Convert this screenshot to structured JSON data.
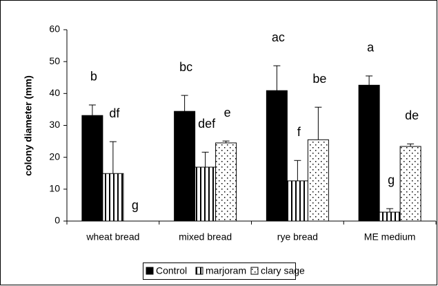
{
  "chart_data": {
    "type": "bar",
    "y_label": "colony diameter (mm)",
    "categories": [
      "wheat bread",
      "mixed bread",
      "rye bread",
      "ME medium"
    ],
    "series": [
      {
        "name": "Control",
        "color": "#000000",
        "pattern": "solid",
        "values": [
          33.1,
          34.4,
          40.9,
          42.6
        ],
        "errors": [
          3.3,
          5.0,
          7.8,
          2.9
        ],
        "labels": [
          "b",
          "bc",
          "ac",
          "a"
        ]
      },
      {
        "name": "marjoram",
        "color": "#000000",
        "pattern": "vertical-lines",
        "values": [
          14.9,
          16.9,
          12.6,
          2.8
        ],
        "errors": [
          10.0,
          4.7,
          6.4,
          1.1
        ],
        "labels": [
          "df",
          "def",
          "f",
          "g"
        ]
      },
      {
        "name": "clary sage",
        "color": "#000000",
        "pattern": "dots",
        "values": [
          0,
          24.5,
          25.5,
          23.4
        ],
        "errors": [
          0,
          0.6,
          10.2,
          0.8
        ],
        "labels": [
          "g",
          "e",
          "be",
          "de"
        ]
      }
    ],
    "ylim": [
      0,
      60
    ],
    "yticks": [
      0,
      10,
      20,
      30,
      40,
      50,
      60
    ],
    "legend": "bottom"
  }
}
